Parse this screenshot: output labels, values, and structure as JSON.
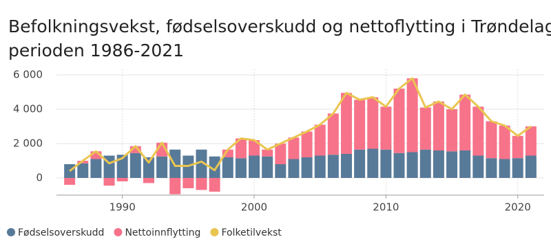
{
  "chart_data": {
    "type": "bar",
    "title_lines": [
      "Befolkningsvekst, fødselsoverskudd og nettoflytting i Trøndelag i",
      "perioden 1986-2021"
    ],
    "x": [
      1986,
      1987,
      1988,
      1989,
      1990,
      1991,
      1992,
      1993,
      1994,
      1995,
      1996,
      1997,
      1998,
      1999,
      2000,
      2001,
      2002,
      2003,
      2004,
      2005,
      2006,
      2007,
      2008,
      2009,
      2010,
      2011,
      2012,
      2013,
      2014,
      2015,
      2016,
      2017,
      2018,
      2019,
      2020,
      2021
    ],
    "series": [
      {
        "name": "Fødselsoverskudd",
        "color": "#587a99",
        "kind": "bar",
        "values": [
          800,
          850,
          1100,
          1300,
          1350,
          1450,
          1200,
          1250,
          1650,
          1300,
          1650,
          1250,
          1200,
          1150,
          1300,
          1250,
          800,
          1100,
          1200,
          1300,
          1350,
          1400,
          1650,
          1700,
          1650,
          1450,
          1500,
          1650,
          1600,
          1550,
          1600,
          1300,
          1150,
          1100,
          1150,
          1300
        ]
      },
      {
        "name": "Nettoinnflytting",
        "color": "#f7738a",
        "kind": "bar",
        "values": [
          -400,
          150,
          450,
          -450,
          -200,
          400,
          -300,
          800,
          -950,
          -600,
          -700,
          -800,
          450,
          1150,
          900,
          400,
          1200,
          1250,
          1500,
          1800,
          2400,
          3550,
          2900,
          3000,
          2500,
          3750,
          4300,
          2450,
          2850,
          2450,
          3250,
          2850,
          2150,
          1950,
          1300,
          1700
        ]
      },
      {
        "name": "Folketilvekst",
        "color": "#eac54f",
        "kind": "line",
        "values": [
          400,
          1000,
          1550,
          850,
          1150,
          1850,
          900,
          2050,
          700,
          700,
          950,
          450,
          1650,
          2300,
          2200,
          1650,
          2000,
          2350,
          2700,
          3100,
          3750,
          4950,
          4550,
          4700,
          4150,
          5200,
          5800,
          4100,
          4450,
          4000,
          4850,
          4150,
          3300,
          3050,
          2450,
          3000
        ]
      }
    ],
    "xlim": [
      1985,
      2022
    ],
    "xticks": [
      1990,
      2000,
      2010,
      2020
    ],
    "ylim": [
      -1000,
      6300
    ],
    "yticks": [
      0,
      {
        "value": 2000,
        "label": "2 000"
      },
      {
        "value": 4000,
        "label": "4 000"
      },
      {
        "value": 6000,
        "label": "6 000"
      }
    ],
    "grid": true,
    "legend": "bottom"
  }
}
